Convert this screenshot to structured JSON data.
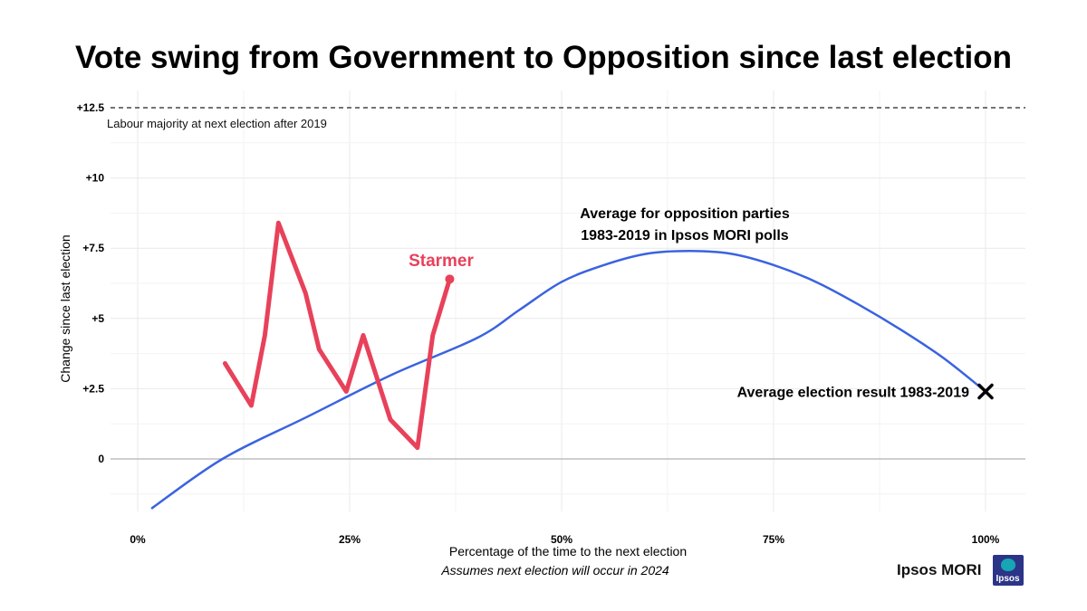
{
  "chart_data": {
    "type": "line",
    "title": "Vote swing from Government to Opposition since last election",
    "xlabel": "Percentage of the time to the next election",
    "xlabel_note": "Assumes next election will occur in 2024",
    "ylabel": "Change since last election",
    "xlim": [
      0,
      100
    ],
    "ylim": [
      -2,
      12.5
    ],
    "x_ticks": [
      {
        "value": 0,
        "label": "0%"
      },
      {
        "value": 25,
        "label": "25%"
      },
      {
        "value": 50,
        "label": "50%"
      },
      {
        "value": 75,
        "label": "75%"
      },
      {
        "value": 100,
        "label": "100%"
      }
    ],
    "y_ticks": [
      {
        "value": 0,
        "label": "0"
      },
      {
        "value": 2.5,
        "label": "+2.5"
      },
      {
        "value": 5,
        "label": "+5"
      },
      {
        "value": 7.5,
        "label": "+7.5"
      },
      {
        "value": 10,
        "label": "+10"
      },
      {
        "value": 12.5,
        "label": "+12.5"
      }
    ],
    "reference_line": {
      "y": 12.5,
      "label": "Labour majority at next election after 2019",
      "style": "dashed",
      "color": "#222222"
    },
    "series": [
      {
        "name": "Average for opposition parties 1983-2019 in Ipsos MORI polls",
        "label_lines": [
          "Average for opposition parties",
          "1983-2019 in Ipsos MORI polls"
        ],
        "color": "#3a63e0",
        "x": [
          1.7,
          10,
          20,
          30,
          40,
          45,
          50,
          55,
          60,
          65,
          70,
          75,
          80,
          85,
          90,
          95,
          100
        ],
        "y": [
          -1.75,
          0,
          1.5,
          3.0,
          4.3,
          5.3,
          6.3,
          6.9,
          7.3,
          7.4,
          7.3,
          6.9,
          6.3,
          5.5,
          4.6,
          3.6,
          2.4
        ]
      },
      {
        "name": "Starmer",
        "label": "Starmer",
        "color": "#e8415a",
        "x": [
          10.3,
          13.4,
          15,
          16.6,
          19.8,
          21.4,
          24.6,
          26.6,
          29.8,
          33.0,
          34.8,
          36.8
        ],
        "y": [
          3.4,
          1.9,
          4.4,
          8.4,
          5.9,
          3.9,
          2.4,
          4.4,
          1.4,
          0.4,
          4.4,
          6.4
        ]
      }
    ],
    "annotations": [
      {
        "label": "Average election result 1983-2019",
        "x": 100,
        "y": 2.4,
        "marker": "X"
      }
    ]
  },
  "brand": {
    "text": "Ipsos MORI",
    "logo_text": "Ipsos",
    "logo_color": "#2c3487",
    "logo_accent": "#16a6b4"
  }
}
